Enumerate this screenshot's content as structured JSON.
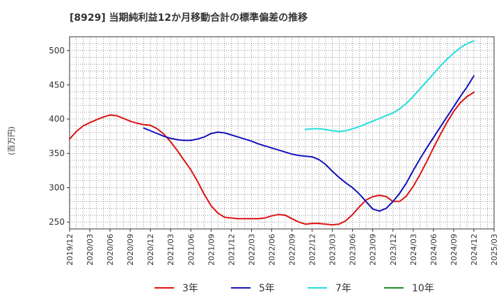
{
  "chart_data": {
    "type": "line",
    "title": "[8929]  当期純利益12か月移動合計の標準偏差の推移",
    "ylabel": "(百万円)",
    "xlabel": "",
    "ylim": [
      240,
      520
    ],
    "y_ticks": [
      250,
      300,
      350,
      400,
      450,
      500
    ],
    "x_range": [
      "2019/12",
      "2025/03"
    ],
    "x_ticks": [
      "2019/12",
      "2020/03",
      "2020/06",
      "2020/09",
      "2020/12",
      "2021/03",
      "2021/06",
      "2021/09",
      "2021/12",
      "2022/03",
      "2022/06",
      "2022/09",
      "2022/12",
      "2023/03",
      "2023/06",
      "2023/09",
      "2023/12",
      "2024/03",
      "2024/06",
      "2024/09",
      "2024/12",
      "2025/03"
    ],
    "grid": true,
    "legend_position": "bottom",
    "series": [
      {
        "name": "3年",
        "color": "#dd1111",
        "x": [
          "2019/12",
          "2020/01",
          "2020/02",
          "2020/03",
          "2020/04",
          "2020/05",
          "2020/06",
          "2020/07",
          "2020/08",
          "2020/09",
          "2020/10",
          "2020/11",
          "2020/12",
          "2021/01",
          "2021/02",
          "2021/03",
          "2021/04",
          "2021/05",
          "2021/06",
          "2021/07",
          "2021/08",
          "2021/09",
          "2021/10",
          "2021/11",
          "2021/12",
          "2022/01",
          "2022/02",
          "2022/03",
          "2022/04",
          "2022/05",
          "2022/06",
          "2022/07",
          "2022/08",
          "2022/09",
          "2022/10",
          "2022/11",
          "2022/12",
          "2023/01",
          "2023/02",
          "2023/03",
          "2023/04",
          "2023/05",
          "2023/06",
          "2023/07",
          "2023/08",
          "2023/09",
          "2023/10",
          "2023/11",
          "2023/12",
          "2024/01",
          "2024/02",
          "2024/03",
          "2024/04",
          "2024/05",
          "2024/06",
          "2024/07",
          "2024/08",
          "2024/09",
          "2024/10",
          "2024/11",
          "2024/12"
        ],
        "values": [
          371,
          382,
          390,
          395,
          399,
          403,
          406,
          405,
          401,
          397,
          394,
          392,
          391,
          386,
          378,
          367,
          354,
          340,
          326,
          309,
          290,
          274,
          263,
          257,
          256,
          255,
          255,
          255,
          255,
          256,
          259,
          261,
          260,
          255,
          250,
          247,
          248,
          248,
          247,
          246,
          247,
          252,
          261,
          272,
          282,
          287,
          289,
          287,
          280,
          280,
          288,
          302,
          319,
          338,
          358,
          377,
          395,
          411,
          424,
          433,
          439
        ]
      },
      {
        "name": "5年",
        "color": "#1111bb",
        "x": [
          "2020/11",
          "2020/12",
          "2021/01",
          "2021/02",
          "2021/03",
          "2021/04",
          "2021/05",
          "2021/06",
          "2021/07",
          "2021/08",
          "2021/09",
          "2021/10",
          "2021/11",
          "2021/12",
          "2022/01",
          "2022/02",
          "2022/03",
          "2022/04",
          "2022/05",
          "2022/06",
          "2022/07",
          "2022/08",
          "2022/09",
          "2022/10",
          "2022/11",
          "2022/12",
          "2023/01",
          "2023/02",
          "2023/03",
          "2023/04",
          "2023/05",
          "2023/06",
          "2023/07",
          "2023/08",
          "2023/09",
          "2023/10",
          "2023/11",
          "2023/12",
          "2024/01",
          "2024/02",
          "2024/03",
          "2024/04",
          "2024/05",
          "2024/06",
          "2024/07",
          "2024/08",
          "2024/09",
          "2024/10",
          "2024/11",
          "2024/12"
        ],
        "values": [
          387,
          383,
          379,
          375,
          372,
          370,
          369,
          369,
          371,
          374,
          379,
          381,
          380,
          377,
          374,
          371,
          368,
          364,
          361,
          358,
          355,
          352,
          349,
          347,
          346,
          345,
          341,
          334,
          324,
          315,
          307,
          300,
          291,
          280,
          269,
          266,
          270,
          280,
          292,
          307,
          325,
          342,
          358,
          373,
          388,
          403,
          418,
          433,
          447,
          463
        ]
      },
      {
        "name": "7年",
        "color": "#22dddd",
        "x": [
          "2022/11",
          "2022/12",
          "2023/01",
          "2023/02",
          "2023/03",
          "2023/04",
          "2023/05",
          "2023/06",
          "2023/07",
          "2023/08",
          "2023/09",
          "2023/10",
          "2023/11",
          "2023/12",
          "2024/01",
          "2024/02",
          "2024/03",
          "2024/04",
          "2024/05",
          "2024/06",
          "2024/07",
          "2024/08",
          "2024/09",
          "2024/10",
          "2024/11",
          "2024/12"
        ],
        "values": [
          385,
          386,
          386,
          385,
          383,
          382,
          383,
          386,
          389,
          393,
          397,
          401,
          405,
          409,
          415,
          423,
          433,
          444,
          455,
          466,
          477,
          487,
          496,
          504,
          510,
          514
        ]
      },
      {
        "name": "10年",
        "color": "#228822",
        "x": [],
        "values": []
      }
    ]
  }
}
